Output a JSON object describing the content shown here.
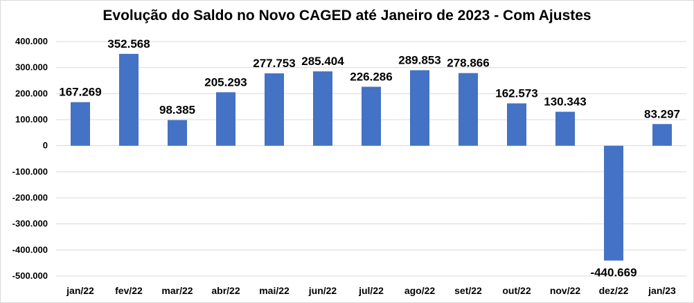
{
  "chart_data": {
    "type": "bar",
    "title": "Evolução do Saldo no Novo CAGED até Janeiro de 2023 - Com Ajustes",
    "categories": [
      "jan/22",
      "fev/22",
      "mar/22",
      "abr/22",
      "mai/22",
      "jun/22",
      "jul/22",
      "ago/22",
      "set/22",
      "out/22",
      "nov/22",
      "dez/22",
      "jan/23"
    ],
    "values": [
      167269,
      352568,
      98385,
      205293,
      277753,
      285404,
      226286,
      289853,
      278866,
      162573,
      130343,
      -440669,
      83297
    ],
    "data_labels": [
      "167.269",
      "352.568",
      "98.385",
      "205.293",
      "277.753",
      "285.404",
      "226.286",
      "289.853",
      "278.866",
      "162.573",
      "130.343",
      "-440.669",
      "83.297"
    ],
    "y_ticks": [
      400000,
      300000,
      200000,
      100000,
      0,
      -100000,
      -200000,
      -300000,
      -400000,
      -500000
    ],
    "y_tick_labels": [
      "400.000",
      "300.000",
      "200.000",
      "100.000",
      "0",
      "-100.000",
      "-200.000",
      "-300.000",
      "-400.000",
      "-500.000"
    ],
    "ylim": [
      -500000,
      400000
    ],
    "xlabel": "",
    "ylabel": "",
    "grid": true,
    "bar_color": "#4472c4"
  }
}
